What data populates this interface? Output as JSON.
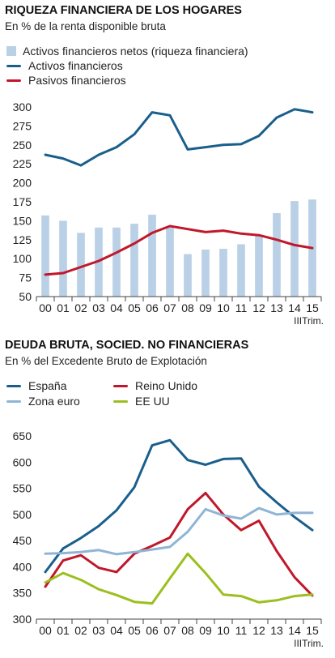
{
  "chart_data": [
    {
      "type": "bar+line",
      "title": "RIQUEZA FINANCIERA DE LOS HOGARES",
      "subtitle": "En % de la renta disponible bruta",
      "categories": [
        "00",
        "01",
        "02",
        "03",
        "04",
        "05",
        "06",
        "07",
        "08",
        "09",
        "10",
        "11",
        "12",
        "13",
        "14",
        "15"
      ],
      "x_suffix": "IIITrim.",
      "ylim": [
        50,
        300
      ],
      "yticks": [
        50,
        75,
        100,
        125,
        150,
        175,
        200,
        225,
        250,
        275,
        300
      ],
      "grid": false,
      "legend_position": "top-left",
      "series": [
        {
          "name": "Activos financieros netos (riqueza financiera)",
          "kind": "bar",
          "color": "#b9d0e6",
          "values": [
            157,
            150,
            134,
            141,
            141,
            146,
            158,
            141,
            106,
            112,
            113,
            119,
            131,
            160,
            176,
            178
          ]
        },
        {
          "name": "Activos financieros",
          "kind": "line",
          "color": "#1a5f8c",
          "values": [
            237,
            232,
            223,
            237,
            247,
            264,
            293,
            289,
            244,
            247,
            250,
            251,
            262,
            286,
            297,
            293
          ]
        },
        {
          "name": "Pasivos financieros",
          "kind": "line",
          "color": "#c0182a",
          "values": [
            79,
            81,
            89,
            97,
            108,
            120,
            134,
            143,
            139,
            135,
            137,
            133,
            131,
            125,
            118,
            114
          ]
        }
      ]
    },
    {
      "type": "line",
      "title": "DEUDA BRUTA, SOCIED. NO FINANCIERAS",
      "subtitle": "En % del Excedente Bruto de Explotación",
      "categories": [
        "00",
        "01",
        "02",
        "03",
        "04",
        "05",
        "06",
        "07",
        "08",
        "09",
        "10",
        "11",
        "12",
        "13",
        "14",
        "15"
      ],
      "x_suffix": "IIITrim.",
      "ylim": [
        300,
        650
      ],
      "yticks": [
        300,
        350,
        400,
        450,
        500,
        550,
        600,
        650
      ],
      "grid": false,
      "legend_position": "top-left",
      "series": [
        {
          "name": "España",
          "color": "#1a5f8c",
          "values": [
            390,
            435,
            455,
            478,
            508,
            552,
            632,
            642,
            604,
            595,
            606,
            607,
            553,
            523,
            495,
            470
          ]
        },
        {
          "name": "Reino Unido",
          "color": "#c0182a",
          "values": [
            362,
            412,
            422,
            398,
            390,
            425,
            440,
            456,
            510,
            541,
            500,
            470,
            488,
            430,
            380,
            345
          ]
        },
        {
          "name": "Zona euro",
          "color": "#8fb5d6",
          "values": [
            425,
            426,
            428,
            432,
            424,
            428,
            433,
            438,
            467,
            510,
            498,
            492,
            512,
            500,
            503,
            503
          ]
        },
        {
          "name": "EE UU",
          "color": "#9bbf1f",
          "values": [
            370,
            388,
            375,
            357,
            346,
            333,
            330,
            378,
            425,
            388,
            347,
            344,
            332,
            336,
            344,
            347
          ]
        }
      ]
    }
  ]
}
